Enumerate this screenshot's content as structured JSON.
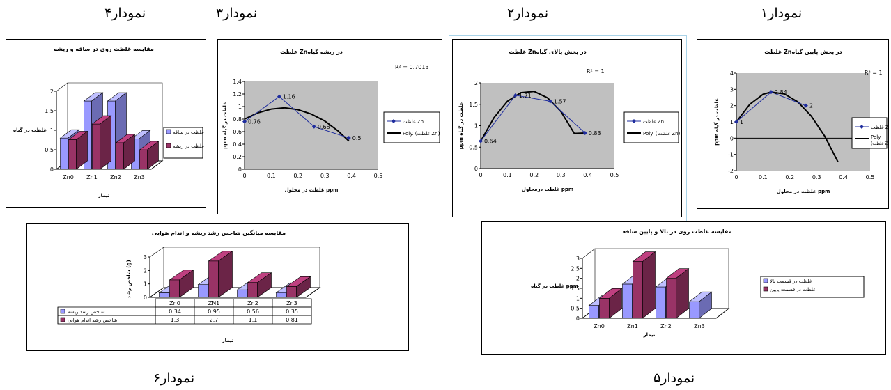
{
  "captions": {
    "c1": "نمودار۱",
    "c2": "نمودار۲",
    "c3": "نمودار۳",
    "c4": "نمودار۴",
    "c5": "نمودار۵",
    "c6": "نمودار۶"
  },
  "chart_data": [
    {
      "id": "chart1",
      "type": "scatter",
      "title": "غلظت Znدر بخش پایین گیاه",
      "xlabel": "غلظت در محلول ppm",
      "ylabel": "ppm غلظت در گیاه",
      "xlim": [
        0,
        0.5
      ],
      "ylim": [
        -2,
        4
      ],
      "xticks": [
        "0",
        "0.1",
        "0.2",
        "0.3",
        "0.4",
        "0.5"
      ],
      "yticks": [
        "-2",
        "-1",
        "0",
        "1",
        "2",
        "3",
        "4"
      ],
      "r2": "R² = 1",
      "series": [
        {
          "name": "غلظت Zn",
          "x": [
            0,
            0.13,
            0.26
          ],
          "y": [
            1,
            2.84,
            2
          ],
          "labels": [
            "1",
            "2.84",
            "2"
          ]
        },
        {
          "name": "Poly. (غلظت Zn)",
          "trend": true,
          "x": [
            0,
            0.05,
            0.1,
            0.13,
            0.18,
            0.23,
            0.28,
            0.33,
            0.38
          ],
          "y": [
            1,
            2.08,
            2.7,
            2.84,
            2.72,
            2.23,
            1.36,
            0.13,
            -1.47
          ]
        }
      ],
      "legend": [
        "غلظت Zn",
        "Poly.",
        "(غلظت Zn)"
      ]
    },
    {
      "id": "chart2",
      "type": "scatter",
      "title": "غلظت Znدر بخش بالای گیاه",
      "xlabel": "غلظت درمحلول ppm",
      "ylabel": "ppm غلظت در گیاه",
      "xlim": [
        0,
        0.5
      ],
      "ylim": [
        0,
        2
      ],
      "xticks": [
        "0",
        "0.1",
        "0.2",
        "0.3",
        "0.4",
        "0.5"
      ],
      "yticks": [
        "0",
        "0.5",
        "1",
        "1.5",
        "2"
      ],
      "r2": "R² = 1",
      "series": [
        {
          "name": "غلظت Zn",
          "x": [
            0,
            0.13,
            0.26,
            0.39
          ],
          "y": [
            0.64,
            1.71,
            1.57,
            0.83
          ],
          "labels": [
            "0.64",
            "1.71",
            "1.57",
            "0.83"
          ]
        },
        {
          "name": "Poly. (غلظت Zn)",
          "trend": true,
          "x": [
            0,
            0.05,
            0.1,
            0.15,
            0.2,
            0.25,
            0.3,
            0.35,
            0.39
          ],
          "y": [
            0.64,
            1.19,
            1.57,
            1.77,
            1.8,
            1.65,
            1.33,
            0.82,
            0.83
          ]
        }
      ],
      "legend": [
        "غلظت Zn",
        "Poly. (غلظت Zn)"
      ]
    },
    {
      "id": "chart3",
      "type": "scatter",
      "title": "غلظت Znدر ریشه گیاه",
      "xlabel": "غلظت در محلول ppm",
      "ylabel": "ppm غلظت در گیاه",
      "xlim": [
        0,
        0.5
      ],
      "ylim": [
        0,
        1.4
      ],
      "xticks": [
        "0",
        "0.1",
        "0.2",
        "0.3",
        "0.4",
        "0.5"
      ],
      "yticks": [
        "0",
        "0.2",
        "0.4",
        "0.6",
        "0.8",
        "1",
        "1.2",
        "1.4"
      ],
      "r2": "R² = 0.7013",
      "series": [
        {
          "name": "غلظت Zn",
          "x": [
            0,
            0.13,
            0.26,
            0.39
          ],
          "y": [
            0.76,
            1.16,
            0.68,
            0.5
          ],
          "labels": [
            "0.76",
            "1.16",
            "0.68",
            "0.5"
          ]
        },
        {
          "name": "Poly. (غلظت Zn)",
          "trend": true,
          "x": [
            0,
            0.05,
            0.1,
            0.15,
            0.2,
            0.25,
            0.3,
            0.35,
            0.39
          ],
          "y": [
            0.8,
            0.9,
            0.96,
            0.98,
            0.95,
            0.88,
            0.77,
            0.61,
            0.45
          ]
        }
      ],
      "legend": [
        "غلظت Zn",
        "Poly. (غلظت Zn)"
      ]
    },
    {
      "id": "chart4",
      "type": "bar",
      "title": "مقایسه غلظت روی در ساقه و ریشه",
      "xlabel": "تیمار",
      "ylabel": "غلظت در گیاه",
      "ylim": [
        0,
        2
      ],
      "yticks": [
        "0",
        "0.5",
        "1",
        "1.5",
        "2"
      ],
      "categories": [
        "Zn0",
        "Zn1",
        "Zn2",
        "Zn3"
      ],
      "series": [
        {
          "name": "غلظت در ساقه",
          "values": [
            0.8,
            1.75,
            1.75,
            0.78
          ],
          "color": "#9999ff"
        },
        {
          "name": "غلظت در ریشه",
          "values": [
            0.76,
            1.16,
            0.68,
            0.5
          ],
          "color": "#993366"
        }
      ]
    },
    {
      "id": "chart5",
      "type": "bar",
      "title": "مقایسه غلظت روی در بالا و پایین ساقه",
      "xlabel": "تیمار",
      "ylabel": "غلظت در گیاه ppm",
      "ylim": [
        0,
        3
      ],
      "yticks": [
        "0",
        "0.5",
        "1",
        "1.5",
        "2",
        "2.5",
        "3"
      ],
      "categories": [
        "Zn0",
        "Zn1",
        "Zn2",
        "Zn3"
      ],
      "series": [
        {
          "name": "غلظت در قسمت بالا",
          "values": [
            0.64,
            1.71,
            1.57,
            0.83
          ],
          "color": "#9999ff"
        },
        {
          "name": "غلظت در قسمت پایین",
          "values": [
            1,
            2.84,
            2,
            null
          ],
          "color": "#993366"
        }
      ]
    },
    {
      "id": "chart6",
      "type": "bar",
      "title": "مقایسه میانگین شاخص رشد ریشه و اندام هوایی",
      "xlabel": "تیمار",
      "ylabel": "شاخص رشد (g)",
      "ylim": [
        0,
        3
      ],
      "yticks": [
        "0",
        "1",
        "2",
        "3"
      ],
      "categories": [
        "Zn0",
        "ZN1",
        "Zn2",
        "Zn3"
      ],
      "series": [
        {
          "name": "شاخص رشد ریشه",
          "values": [
            0.34,
            0.95,
            0.56,
            0.35
          ],
          "labels": [
            "0.34",
            "0.95",
            "0.56",
            "0.35"
          ],
          "color": "#9999ff"
        },
        {
          "name": "شاخص رشد اندام هوایی",
          "values": [
            1.3,
            2.7,
            1.1,
            0.81
          ],
          "labels": [
            "1.3",
            "2.7",
            "1.1",
            "0.81"
          ],
          "color": "#993366"
        }
      ]
    }
  ]
}
